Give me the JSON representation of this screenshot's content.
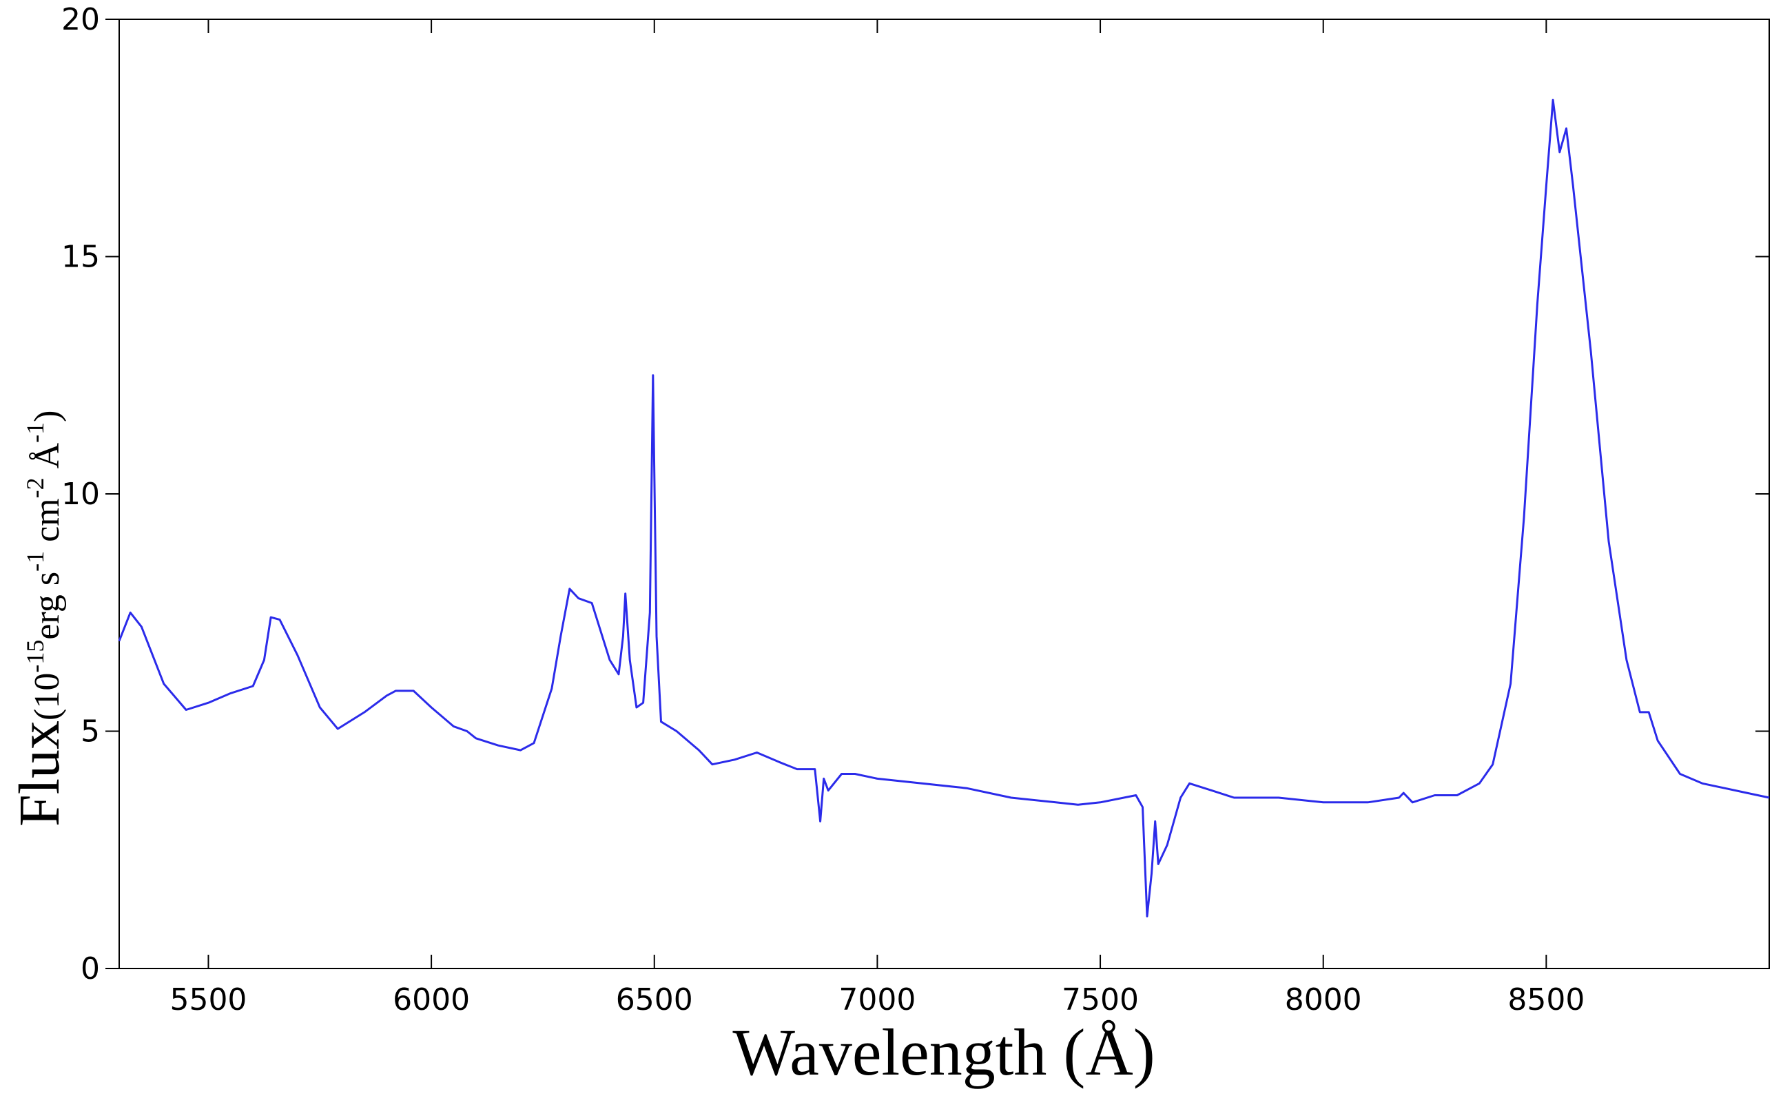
{
  "chart_data": {
    "type": "line",
    "xlabel": "Wavelength (Å)",
    "ylabel": "Flux",
    "ylabel_unit": [
      "(10",
      "-15",
      "erg s",
      "-1",
      " cm",
      "-2",
      " Å",
      "-1",
      ")"
    ],
    "xlim": [
      5300,
      9000
    ],
    "xticks": [
      5500,
      6000,
      6500,
      7000,
      7500,
      8000,
      8500
    ],
    "ylim": [
      0,
      20
    ],
    "yticks": [
      0,
      5,
      10,
      15,
      20
    ],
    "grid": false,
    "series": [
      {
        "color": "#2b2bea",
        "x": [
          5300,
          5325,
          5350,
          5400,
          5450,
          5500,
          5550,
          5600,
          5625,
          5640,
          5660,
          5700,
          5750,
          5790,
          5850,
          5900,
          5920,
          5960,
          6000,
          6050,
          6080,
          6100,
          6150,
          6200,
          6230,
          6270,
          6290,
          6310,
          6330,
          6360,
          6400,
          6420,
          6430,
          6435,
          6445,
          6460,
          6475,
          6490,
          6497,
          6505,
          6515,
          6550,
          6600,
          6630,
          6680,
          6730,
          6780,
          6820,
          6860,
          6872,
          6880,
          6890,
          6920,
          6950,
          7000,
          7100,
          7200,
          7300,
          7400,
          7450,
          7500,
          7580,
          7595,
          7605,
          7615,
          7623,
          7630,
          7650,
          7680,
          7700,
          7750,
          7800,
          7900,
          8000,
          8100,
          8170,
          8180,
          8200,
          8250,
          8300,
          8350,
          8380,
          8420,
          8450,
          8480,
          8500,
          8515,
          8530,
          8545,
          8560,
          8600,
          8640,
          8680,
          8710,
          8730,
          8750,
          8800,
          8850,
          8900,
          8950,
          9000
        ],
        "values": [
          6.9,
          7.5,
          7.2,
          6.0,
          5.45,
          5.6,
          5.8,
          5.95,
          6.5,
          7.4,
          7.35,
          6.6,
          5.5,
          5.05,
          5.4,
          5.75,
          5.85,
          5.85,
          5.5,
          5.1,
          5.0,
          4.85,
          4.7,
          4.6,
          4.75,
          5.9,
          7.0,
          8.0,
          7.8,
          7.7,
          6.5,
          6.2,
          7.0,
          7.9,
          6.5,
          5.5,
          5.6,
          7.5,
          12.5,
          7.0,
          5.2,
          5.0,
          4.6,
          4.3,
          4.4,
          4.55,
          4.35,
          4.2,
          4.2,
          3.1,
          4.0,
          3.75,
          4.1,
          4.1,
          4.0,
          3.9,
          3.8,
          3.6,
          3.5,
          3.45,
          3.5,
          3.65,
          3.4,
          1.1,
          2.0,
          3.1,
          2.2,
          2.6,
          3.6,
          3.9,
          3.75,
          3.6,
          3.6,
          3.5,
          3.5,
          3.6,
          3.7,
          3.5,
          3.65,
          3.65,
          3.9,
          4.3,
          6.0,
          9.5,
          14,
          16.5,
          18.3,
          17.2,
          17.7,
          16.5,
          13,
          9,
          6.5,
          5.4,
          5.4,
          4.8,
          4.1,
          3.9,
          3.8,
          3.7,
          3.6
        ]
      }
    ]
  }
}
